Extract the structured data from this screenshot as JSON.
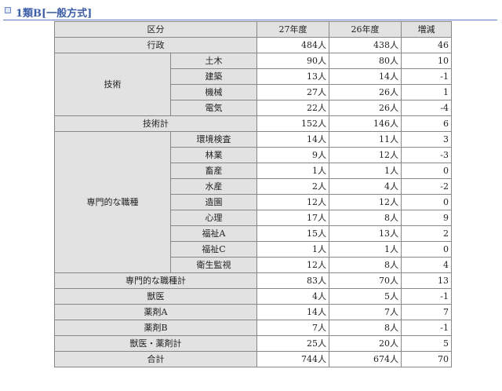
{
  "section_title": "1類B[一般方式]",
  "headers": {
    "category": "区分",
    "y27": "27年度",
    "y26": "26年度",
    "diff": "増減"
  },
  "rows": {
    "gyosei": {
      "label": "行政",
      "y27": "484人",
      "y26": "438人",
      "diff": "46"
    },
    "gijutsu_group": "技術",
    "doboku": {
      "label": "土木",
      "y27": "90人",
      "y26": "80人",
      "diff": "10"
    },
    "kenchiku": {
      "label": "建築",
      "y27": "13人",
      "y26": "14人",
      "diff": "-1"
    },
    "kikai": {
      "label": "機械",
      "y27": "27人",
      "y26": "26人",
      "diff": "1"
    },
    "denki": {
      "label": "電気",
      "y27": "22人",
      "y26": "26人",
      "diff": "-4"
    },
    "gijutsu_total": {
      "label": "技術計",
      "y27": "152人",
      "y26": "146人",
      "diff": "6"
    },
    "senmon_group": "専門的な職種",
    "kankyo": {
      "label": "環境検査",
      "y27": "14人",
      "y26": "11人",
      "diff": "3"
    },
    "ringyo": {
      "label": "林業",
      "y27": "9人",
      "y26": "12人",
      "diff": "-3"
    },
    "chikusan": {
      "label": "畜産",
      "y27": "1人",
      "y26": "1人",
      "diff": "0"
    },
    "suisan": {
      "label": "水産",
      "y27": "2人",
      "y26": "4人",
      "diff": "-2"
    },
    "zoen": {
      "label": "造園",
      "y27": "12人",
      "y26": "12人",
      "diff": "0"
    },
    "shinri": {
      "label": "心理",
      "y27": "17人",
      "y26": "8人",
      "diff": "9"
    },
    "fukushi_a": {
      "label": "福祉A",
      "y27": "15人",
      "y26": "13人",
      "diff": "2"
    },
    "fukushi_c": {
      "label": "福祉C",
      "y27": "1人",
      "y26": "1人",
      "diff": "0"
    },
    "eisei": {
      "label": "衛生監視",
      "y27": "12人",
      "y26": "8人",
      "diff": "4"
    },
    "senmon_total": {
      "label": "専門的な職種計",
      "y27": "83人",
      "y26": "70人",
      "diff": "13"
    },
    "juui": {
      "label": "獣医",
      "y27": "4人",
      "y26": "5人",
      "diff": "-1"
    },
    "yakuzai_a": {
      "label": "薬剤A",
      "y27": "14人",
      "y26": "7人",
      "diff": "7"
    },
    "yakuzai_b": {
      "label": "薬剤B",
      "y27": "7人",
      "y26": "8人",
      "diff": "-1"
    },
    "juui_yakuzai_total": {
      "label": "獣医・薬剤計",
      "y27": "25人",
      "y26": "20人",
      "diff": "5"
    },
    "grand_total": {
      "label": "合計",
      "y27": "744人",
      "y26": "674人",
      "diff": "70"
    }
  }
}
